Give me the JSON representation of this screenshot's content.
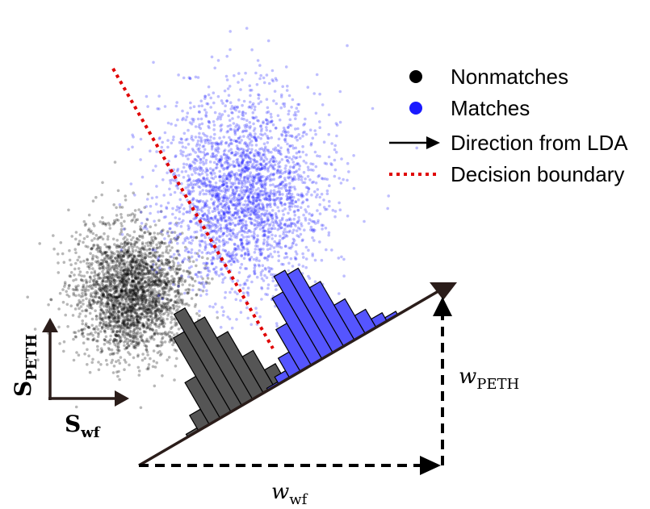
{
  "legend": {
    "nonmatches": "Nonmatches",
    "matches": "Matches",
    "direction": "Direction from LDA",
    "boundary": "Decision boundary"
  },
  "axes": {
    "y_main": "S",
    "y_sub": "PETH",
    "x_main": "S",
    "x_sub": "wf"
  },
  "weights": {
    "peth_main": "w",
    "peth_sub": "PETH",
    "wf_main": "w",
    "wf_sub": "wf"
  },
  "colors": {
    "nonmatch": "#000000",
    "match": "#1a1aff",
    "nonmatch_hist": "#555555",
    "match_hist": "#5555ff",
    "boundary": "#e00000",
    "arrow": "#2b1d1a"
  }
}
